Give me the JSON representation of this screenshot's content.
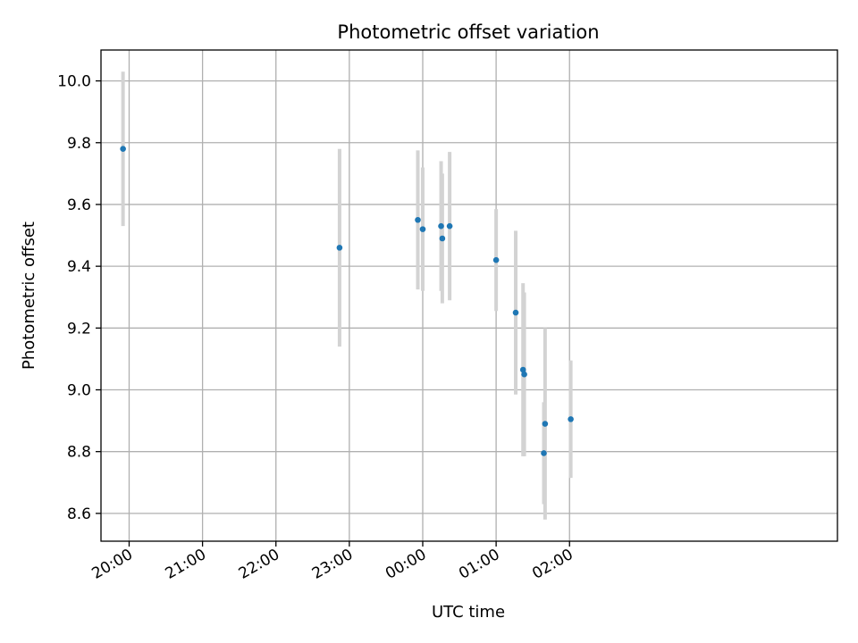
{
  "chart_data": {
    "type": "scatter",
    "title": "Photometric offset variation",
    "xlabel": "UTC time",
    "ylabel": "Photometric offset",
    "x_tick_labels": [
      "20:00",
      "21:00",
      "22:00",
      "23:00",
      "00:00",
      "01:00",
      "02:00"
    ],
    "y_tick_labels": [
      "8.6",
      "8.8",
      "9.0",
      "9.2",
      "9.4",
      "9.6",
      "9.8",
      "10.0"
    ],
    "x_axis_unit": "minutes after 20:00 UTC",
    "xlim": [
      -23,
      579
    ],
    "ylim": [
      8.51,
      10.1
    ],
    "grid": true,
    "colors": {
      "points": "#1f77b4",
      "error_bars": "#d3d3d3",
      "grid": "#b0b0b0"
    },
    "points": [
      {
        "x": -5,
        "y": 9.78,
        "err": 0.25
      },
      {
        "x": 172,
        "y": 9.46,
        "err": 0.32
      },
      {
        "x": 236,
        "y": 9.55,
        "err": 0.225
      },
      {
        "x": 240,
        "y": 9.52,
        "err": 0.2
      },
      {
        "x": 255,
        "y": 9.53,
        "err": 0.21
      },
      {
        "x": 256,
        "y": 9.49,
        "err": 0.21
      },
      {
        "x": 262,
        "y": 9.53,
        "err": 0.24
      },
      {
        "x": 300,
        "y": 9.42,
        "err": 0.165
      },
      {
        "x": 316,
        "y": 9.25,
        "err": 0.265
      },
      {
        "x": 322,
        "y": 9.065,
        "err": 0.28
      },
      {
        "x": 323,
        "y": 9.05,
        "err": 0.265
      },
      {
        "x": 339,
        "y": 8.795,
        "err": 0.165
      },
      {
        "x": 340,
        "y": 8.89,
        "err": 0.31
      },
      {
        "x": 361,
        "y": 8.905,
        "err": 0.19
      }
    ]
  }
}
